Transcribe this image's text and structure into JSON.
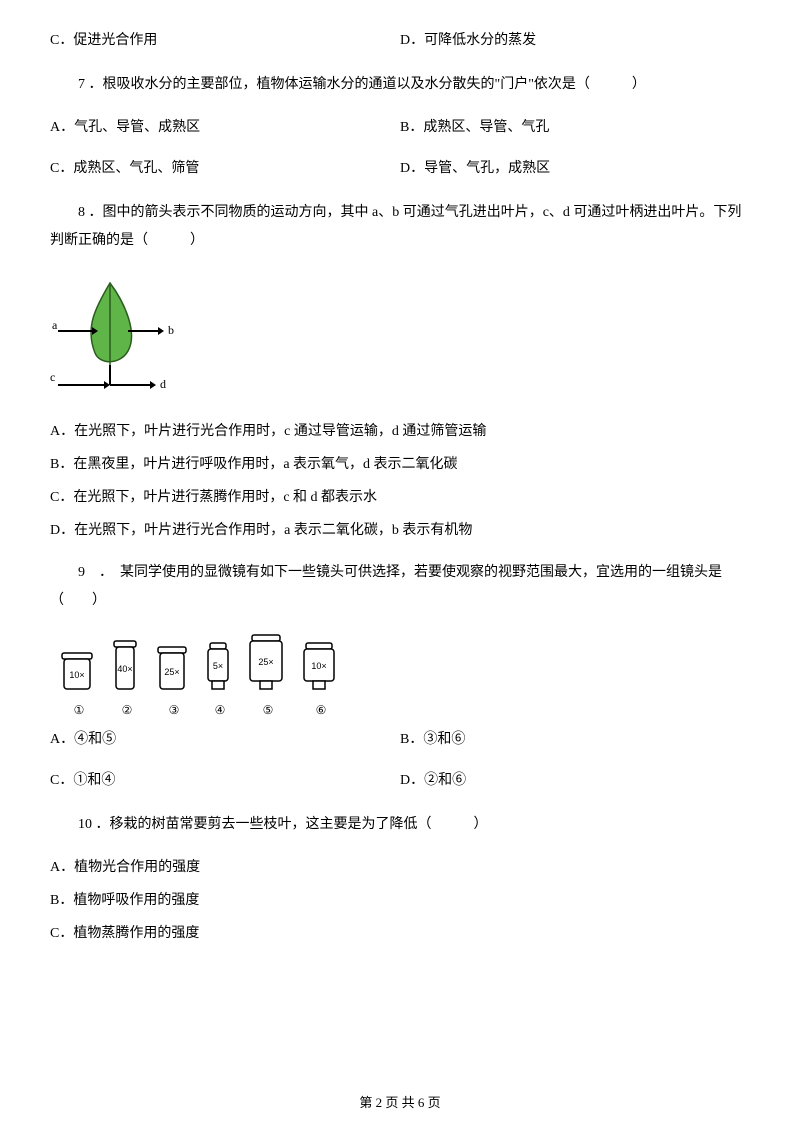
{
  "q6opts": {
    "c": "C．促进光合作用",
    "d": "D．可降低水分的蒸发"
  },
  "q7": {
    "stem": "7 ．根吸收水分的主要部位，植物体运输水分的通道以及水分散失的\"门户\"依次是（　　　）",
    "a": "A．气孔、导管、成熟区",
    "b": "B．成熟区、导管、气孔",
    "c": "C．成熟区、气孔、筛管",
    "d": "D．导管、气孔，成熟区"
  },
  "q8": {
    "stem": "8 ．图中的箭头表示不同物质的运动方向，其中 a、b 可通过气孔进出叶片，c、d 可通过叶柄进出叶片。下列判断正确的是（　　　）",
    "a": "A．在光照下，叶片进行光合作用时，c 通过导管运输，d 通过筛管运输",
    "b": "B．在黑夜里，叶片进行呼吸作用时，a 表示氧气，d 表示二氧化碳",
    "c": "C．在光照下，叶片进行蒸腾作用时，c 和 d 都表示水",
    "d": "D．在光照下，叶片进行光合作用时，a 表示二氧化碳，b 表示有机物",
    "leaf": {
      "fill": "#5fb548",
      "stroke": "#2a5c1e",
      "labels": [
        "a",
        "b",
        "c",
        "d"
      ]
    }
  },
  "q9": {
    "stem": "9　．　某同学使用的显微镜有如下一些镜头可供选择，若要使观察的视野范围最大，宜选用的一组镜头是（　　）",
    "a": "A．④和⑤",
    "b": "B．③和⑥",
    "c": "C．①和④",
    "d": "D．②和⑥",
    "lenses": [
      {
        "num": "①",
        "label": "10×",
        "h": 30,
        "w": 30,
        "type": "eye"
      },
      {
        "num": "②",
        "label": "40×",
        "h": 42,
        "w": 22,
        "type": "eye"
      },
      {
        "num": "③",
        "label": "25×",
        "h": 36,
        "w": 28,
        "type": "eye"
      },
      {
        "num": "④",
        "label": "5×",
        "h": 40,
        "w": 20,
        "type": "obj"
      },
      {
        "num": "⑤",
        "label": "25×",
        "h": 48,
        "w": 32,
        "type": "obj"
      },
      {
        "num": "⑥",
        "label": "10×",
        "h": 40,
        "w": 30,
        "type": "obj"
      }
    ]
  },
  "q10": {
    "stem": "10 ．移栽的树苗常要剪去一些枝叶，这主要是为了降低（　　　）",
    "a": "A．植物光合作用的强度",
    "b": "B．植物呼吸作用的强度",
    "c": "C．植物蒸腾作用的强度"
  },
  "footer": "第 2 页 共 6 页"
}
